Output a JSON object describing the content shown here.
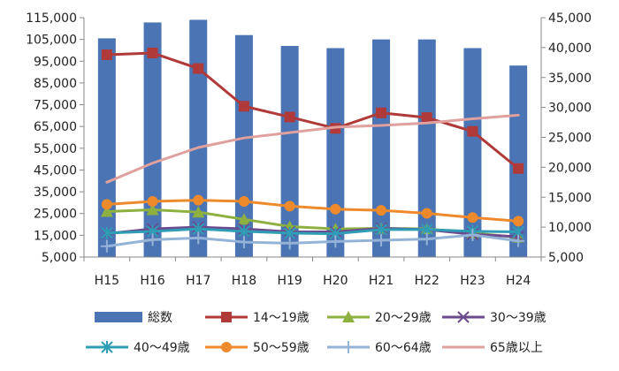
{
  "chart_data": {
    "type": "bar",
    "categories": [
      "H15",
      "H16",
      "H17",
      "H18",
      "H19",
      "H20",
      "H21",
      "H22",
      "H23",
      "H24"
    ],
    "bar_series": {
      "name": "総数",
      "color": "#4a74b4",
      "axis": "left",
      "values": [
        105500,
        112800,
        114000,
        107000,
        102000,
        101000,
        105000,
        105000,
        101000,
        93000
      ]
    },
    "line_series": [
      {
        "name": "14～19歳",
        "color": "#b03a3a",
        "marker": "square",
        "values": [
          38800,
          39100,
          36500,
          30200,
          28400,
          26500,
          29100,
          28300,
          26000,
          19800
        ]
      },
      {
        "name": "20～29歳",
        "color": "#8db040",
        "marker": "triangle",
        "values": [
          12600,
          12900,
          12500,
          11300,
          10100,
          9700,
          9800,
          9700,
          9000,
          8300
        ]
      },
      {
        "name": "30～39歳",
        "color": "#6b4a8e",
        "marker": "x",
        "values": [
          8900,
          9700,
          10000,
          9700,
          9200,
          9200,
          9800,
          9600,
          8800,
          8400
        ]
      },
      {
        "name": "40～49歳",
        "color": "#2e9db5",
        "marker": "asterisk",
        "values": [
          9000,
          9300,
          9700,
          9300,
          9000,
          8900,
          9600,
          9600,
          9300,
          9200
        ]
      },
      {
        "name": "50～59歳",
        "color": "#ee8a2c",
        "marker": "circle",
        "values": [
          13800,
          14300,
          14500,
          14300,
          13500,
          13000,
          12800,
          12300,
          11600,
          11000
        ]
      },
      {
        "name": "60～64歳",
        "color": "#95b3d7",
        "marker": "plus",
        "values": [
          6800,
          7900,
          8200,
          7500,
          7300,
          7600,
          7800,
          8000,
          8700,
          7700
        ]
      },
      {
        "name": "65歳以上",
        "color": "#e0a09e",
        "marker": "none",
        "values": [
          17500,
          20700,
          23300,
          24900,
          25800,
          26700,
          27000,
          27400,
          28100,
          28700
        ]
      }
    ],
    "y_left": {
      "min": 5000,
      "max": 115000,
      "ticks": [
        "5,000",
        "15,000",
        "25,000",
        "35,000",
        "45,000",
        "55,000",
        "65,000",
        "75,000",
        "85,000",
        "95,000",
        "105,000",
        "115,000"
      ]
    },
    "y_right": {
      "min": 5000,
      "max": 45000,
      "ticks": [
        "5,000",
        "10,000",
        "15,000",
        "20,000",
        "25,000",
        "30,000",
        "35,000",
        "40,000",
        "45,000"
      ]
    },
    "grid": false,
    "legend_position": "bottom",
    "title": "",
    "xlabel": "",
    "ylabel": ""
  }
}
